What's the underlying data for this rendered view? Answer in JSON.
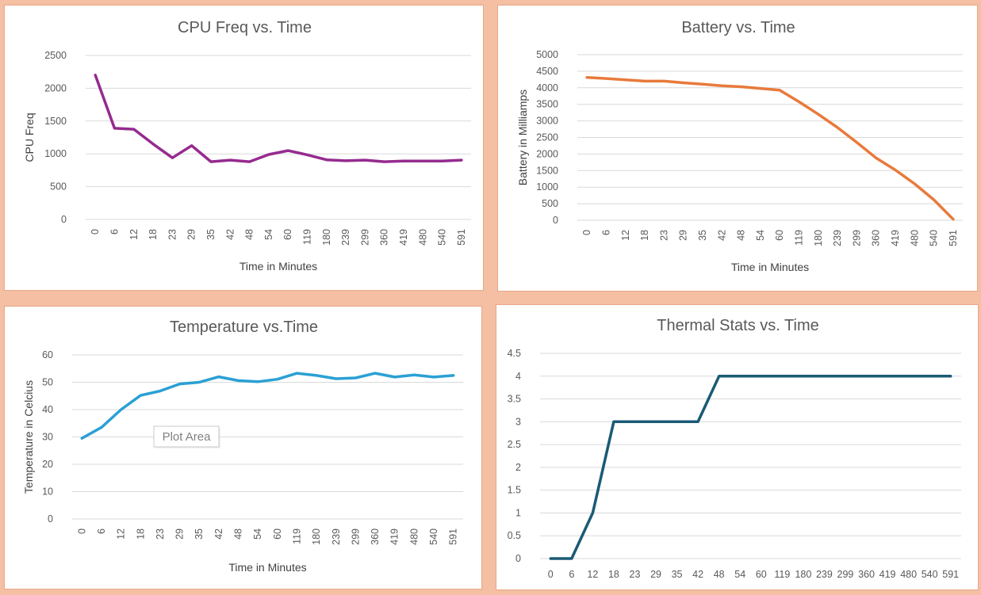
{
  "chart_data": [
    {
      "id": "cpu",
      "type": "line",
      "title": "CPU Freq vs. Time",
      "xlabel": "Time in Minutes",
      "ylabel": "CPU Freq",
      "categories": [
        "0",
        "6",
        "12",
        "18",
        "23",
        "29",
        "35",
        "42",
        "48",
        "54",
        "60",
        "119",
        "180",
        "239",
        "299",
        "360",
        "419",
        "480",
        "540",
        "591"
      ],
      "series": [
        {
          "values": [
            2200,
            1390,
            1375,
            1150,
            940,
            1125,
            880,
            905,
            880,
            990,
            1050,
            985,
            910,
            895,
            905,
            880,
            890,
            890,
            890,
            905
          ]
        }
      ],
      "ylim": [
        0,
        2500
      ],
      "yticks": [
        0,
        500,
        1000,
        1500,
        2000,
        2500
      ],
      "x_tick_rotation": "vertical",
      "color": "#952b8f",
      "grid": true
    },
    {
      "id": "bat",
      "type": "line",
      "title": "Battery vs. Time",
      "xlabel": "Time in Minutes",
      "ylabel": "Battery in Milliamps",
      "categories": [
        "0",
        "6",
        "12",
        "18",
        "23",
        "29",
        "35",
        "42",
        "48",
        "54",
        "60",
        "119",
        "180",
        "239",
        "299",
        "360",
        "419",
        "480",
        "540",
        "591"
      ],
      "series": [
        {
          "values": [
            4310,
            4280,
            4240,
            4200,
            4200,
            4150,
            4110,
            4060,
            4030,
            3980,
            3930,
            3580,
            3200,
            2800,
            2350,
            1880,
            1520,
            1100,
            620,
            30
          ]
        }
      ],
      "ylim": [
        0,
        5000
      ],
      "yticks": [
        0,
        500,
        1000,
        1500,
        2000,
        2500,
        3000,
        3500,
        4000,
        4500,
        5000
      ],
      "x_tick_rotation": "vertical",
      "color": "#e87a3c",
      "grid": true
    },
    {
      "id": "tmp",
      "type": "line",
      "title": "Temperature vs.Time",
      "xlabel": "Time in Minutes",
      "ylabel": "Temperature in Celcius",
      "categories": [
        "0",
        "6",
        "12",
        "18",
        "23",
        "29",
        "35",
        "42",
        "48",
        "54",
        "60",
        "119",
        "180",
        "239",
        "299",
        "360",
        "419",
        "480",
        "540",
        "591"
      ],
      "series": [
        {
          "values": [
            29.5,
            33.5,
            40,
            45.2,
            46.8,
            49.4,
            50,
            52,
            50.6,
            50.2,
            51.1,
            53.3,
            52.5,
            51.3,
            51.6,
            53.3,
            51.9,
            52.7,
            51.9,
            52.5
          ]
        }
      ],
      "ylim": [
        0,
        60
      ],
      "yticks": [
        0,
        10,
        20,
        30,
        40,
        50,
        60
      ],
      "x_tick_rotation": "vertical",
      "color": "#2aa0d4",
      "grid": true,
      "tooltip": "Plot Area"
    },
    {
      "id": "thr",
      "type": "line",
      "title": "Thermal Stats vs. Time",
      "xlabel": "",
      "ylabel": "",
      "categories": [
        "0",
        "6",
        "12",
        "18",
        "23",
        "29",
        "35",
        "42",
        "48",
        "54",
        "60",
        "119",
        "180",
        "239",
        "299",
        "360",
        "419",
        "480",
        "540",
        "591"
      ],
      "series": [
        {
          "values": [
            0,
            0,
            1,
            3,
            3,
            3,
            3,
            3,
            4,
            4,
            4,
            4,
            4,
            4,
            4,
            4,
            4,
            4,
            4,
            4
          ]
        }
      ],
      "ylim": [
        0,
        4.5
      ],
      "yticks": [
        0,
        0.5,
        1,
        1.5,
        2,
        2.5,
        3,
        3.5,
        4,
        4.5
      ],
      "x_tick_rotation": "horizontal",
      "color": "#1a5a75",
      "grid": true
    }
  ]
}
